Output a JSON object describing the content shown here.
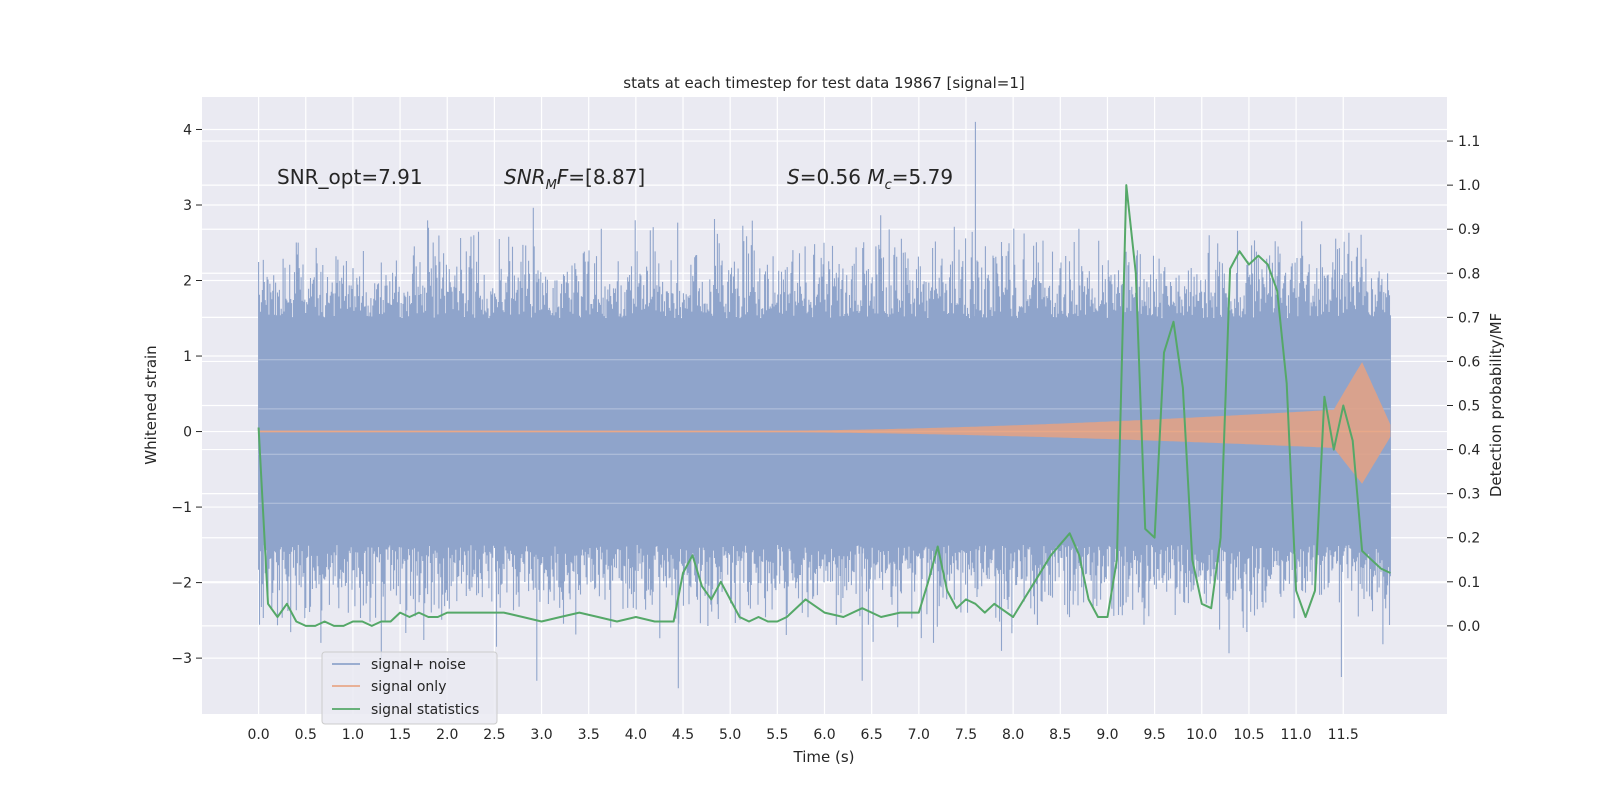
{
  "chart_data": {
    "type": "line",
    "title": "stats at each timestep for test data 19867 [signal=1]",
    "xlabel": "Time (s)",
    "ylabel": "Whitened strain",
    "ylabel_right": "Detection probability/MF",
    "xlim": [
      -0.6,
      12.6
    ],
    "ylim": [
      -3.74,
      4.43
    ],
    "ylim_right": [
      -0.2,
      1.2
    ],
    "x_ticks": [
      "0.0",
      "0.5",
      "1.0",
      "1.5",
      "2.0",
      "2.5",
      "3.0",
      "3.5",
      "4.0",
      "4.5",
      "5.0",
      "5.5",
      "6.0",
      "6.5",
      "7.0",
      "7.5",
      "8.0",
      "8.5",
      "9.0",
      "9.5",
      "10.0",
      "10.5",
      "11.0",
      "11.5"
    ],
    "y_ticks": [
      "4",
      "3",
      "2",
      "1",
      "0",
      "−1",
      "−2",
      "−3"
    ],
    "y_ticks_right": [
      "1.1",
      "1.0",
      "0.9",
      "0.8",
      "0.7",
      "0.6",
      "0.5",
      "0.4",
      "0.3",
      "0.2",
      "0.1",
      "0.0"
    ],
    "grid": true,
    "legend_position": "lower-left",
    "colors": {
      "axes_bg": "#eaeaf2",
      "grid": "#ffffff",
      "noise": "#8fa4cb",
      "signal": "#dd8452",
      "stats": "#55a868"
    },
    "annotations": [
      {
        "text": "SNR_opt=7.91",
        "x": -0.4,
        "y": 3.3
      },
      {
        "text": "SNR_M F=[8.87]",
        "x": 2.45,
        "y": 3.3
      },
      {
        "text": "S=0.56  M_c=5.79",
        "x": 5.5,
        "y": 3.3
      }
    ],
    "series": [
      {
        "name": "signal+ noise",
        "kind": "noise_band",
        "x_range": [
          0.0,
          12.0
        ],
        "core_band": [
          -1.5,
          1.5
        ],
        "peaks": [
          4.1,
          -3.4
        ]
      },
      {
        "name": "signal only",
        "kind": "chirp",
        "x_range": [
          0.0,
          12.0
        ],
        "max_amplitude": 0.92
      },
      {
        "name": "signal statistics",
        "kind": "line",
        "axis": "right",
        "x": [
          0.0,
          0.1,
          0.2,
          0.3,
          0.4,
          0.5,
          0.6,
          0.7,
          0.8,
          0.9,
          1.0,
          1.1,
          1.2,
          1.3,
          1.4,
          1.5,
          1.6,
          1.7,
          1.8,
          1.9,
          2.0,
          2.2,
          2.4,
          2.6,
          2.8,
          3.0,
          3.2,
          3.4,
          3.6,
          3.8,
          4.0,
          4.2,
          4.4,
          4.5,
          4.6,
          4.7,
          4.8,
          4.9,
          5.0,
          5.1,
          5.2,
          5.3,
          5.4,
          5.5,
          5.6,
          5.8,
          6.0,
          6.2,
          6.4,
          6.6,
          6.8,
          7.0,
          7.1,
          7.2,
          7.3,
          7.4,
          7.5,
          7.6,
          7.7,
          7.8,
          8.0,
          8.2,
          8.4,
          8.6,
          8.7,
          8.8,
          8.9,
          9.0,
          9.1,
          9.2,
          9.3,
          9.4,
          9.5,
          9.6,
          9.7,
          9.8,
          9.9,
          10.0,
          10.1,
          10.2,
          10.3,
          10.4,
          10.5,
          10.6,
          10.7,
          10.8,
          10.9,
          11.0,
          11.1,
          11.2,
          11.3,
          11.4,
          11.5,
          11.6,
          11.7,
          11.8,
          11.9,
          12.0
        ],
        "values": [
          0.45,
          0.05,
          0.02,
          0.05,
          0.01,
          0.0,
          0.0,
          0.01,
          0.0,
          0.0,
          0.01,
          0.01,
          0.0,
          0.01,
          0.01,
          0.03,
          0.02,
          0.03,
          0.02,
          0.02,
          0.03,
          0.03,
          0.03,
          0.03,
          0.02,
          0.01,
          0.02,
          0.03,
          0.02,
          0.01,
          0.02,
          0.01,
          0.01,
          0.12,
          0.16,
          0.09,
          0.06,
          0.1,
          0.06,
          0.02,
          0.01,
          0.02,
          0.01,
          0.01,
          0.02,
          0.06,
          0.03,
          0.02,
          0.04,
          0.02,
          0.03,
          0.03,
          0.1,
          0.18,
          0.08,
          0.04,
          0.06,
          0.05,
          0.03,
          0.05,
          0.02,
          0.09,
          0.16,
          0.21,
          0.16,
          0.06,
          0.02,
          0.02,
          0.15,
          1.0,
          0.8,
          0.22,
          0.2,
          0.62,
          0.69,
          0.54,
          0.15,
          0.05,
          0.04,
          0.2,
          0.81,
          0.85,
          0.82,
          0.84,
          0.82,
          0.76,
          0.55,
          0.08,
          0.02,
          0.08,
          0.52,
          0.4,
          0.5,
          0.42,
          0.17,
          0.15,
          0.13,
          0.12
        ]
      }
    ]
  }
}
